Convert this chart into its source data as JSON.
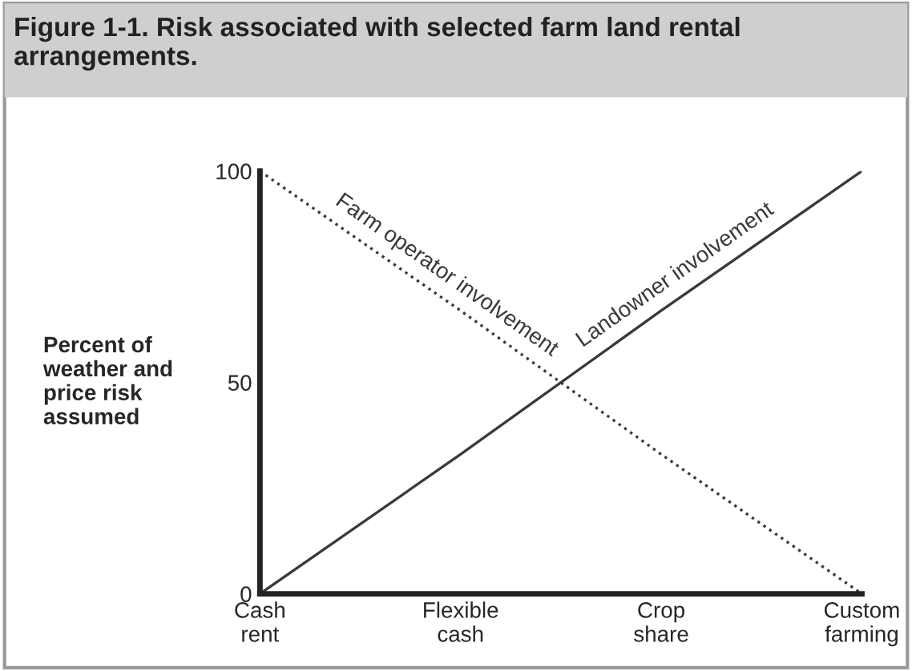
{
  "chart_data": {
    "type": "line",
    "title": "Figure 1-1. Risk associated with selected farm land rental arrangements.",
    "ylabel": "Percent of\nweather and\nprice risk\nassumed",
    "categories": [
      "Cash\nrent",
      "Flexible\ncash",
      "Crop\nshare",
      "Custom\nfarming"
    ],
    "series": [
      {
        "name": "Farm operator involvement",
        "color": "#3a3a3a",
        "line_style": "dotted",
        "values": [
          100,
          67,
          33,
          0
        ]
      },
      {
        "name": "Landowner involvement",
        "color": "#3a3a3a",
        "line_style": "solid",
        "values": [
          0,
          33,
          67,
          100
        ]
      }
    ],
    "ylim": [
      0,
      100
    ],
    "yticks": [
      0,
      50,
      100
    ],
    "grid": false,
    "legend": false,
    "marker": "none"
  }
}
